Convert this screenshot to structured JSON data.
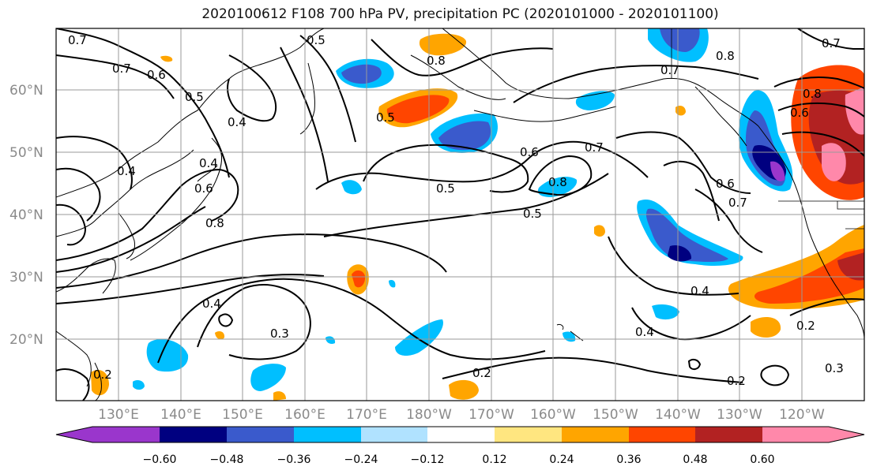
{
  "title": "2020100612 F108 700 hPa PV, precipitation PC (2020101000 - 2020101100)",
  "lat_labels": [
    "60°N",
    "50°N",
    "40°N",
    "30°N",
    "20°N"
  ],
  "lon_labels": [
    "130°E",
    "140°E",
    "150°E",
    "160°E",
    "170°E",
    "180°W",
    "170°W",
    "160°W",
    "150°W",
    "140°W",
    "130°W",
    "120°W"
  ],
  "contour_labels": [
    "0.7",
    "0.7",
    "0.6",
    "0.5",
    "0.4",
    "0.4",
    "0.4",
    "0.6",
    "0.8",
    "0.8",
    "0.5",
    "0.5",
    "0.5",
    "0.6",
    "0.7",
    "0.8",
    "0.5",
    "0.8",
    "0.7",
    "0.8",
    "0.6",
    "0.6",
    "0.7",
    "0.4",
    "0.4",
    "0.4",
    "0.3",
    "0.2",
    "0.2",
    "0.2",
    "0.2",
    "0.3",
    "0.7"
  ],
  "colorbar": {
    "ticks": [
      "−0.60",
      "−0.48",
      "−0.36",
      "−0.24",
      "−0.12",
      "0.12",
      "0.24",
      "0.36",
      "0.48",
      "0.60"
    ],
    "colors": [
      "#9a36cc",
      "#000080",
      "#3a5acc",
      "#00bfff",
      "#b0e2ff",
      "#ffffff",
      "#ffe680",
      "#ffa500",
      "#ff4500",
      "#b22222",
      "#ff88aa"
    ]
  },
  "legend_colors": {
    "neg_1": "#b0e2ff",
    "neg_2": "#00bfff",
    "neg_3": "#3a5acc",
    "neg_4": "#000080",
    "neg_5": "#9a36cc",
    "pos_1": "#ffe680",
    "pos_2": "#ffa500",
    "pos_3": "#ff4500",
    "pos_4": "#b22222",
    "pos_5": "#ff88aa"
  }
}
